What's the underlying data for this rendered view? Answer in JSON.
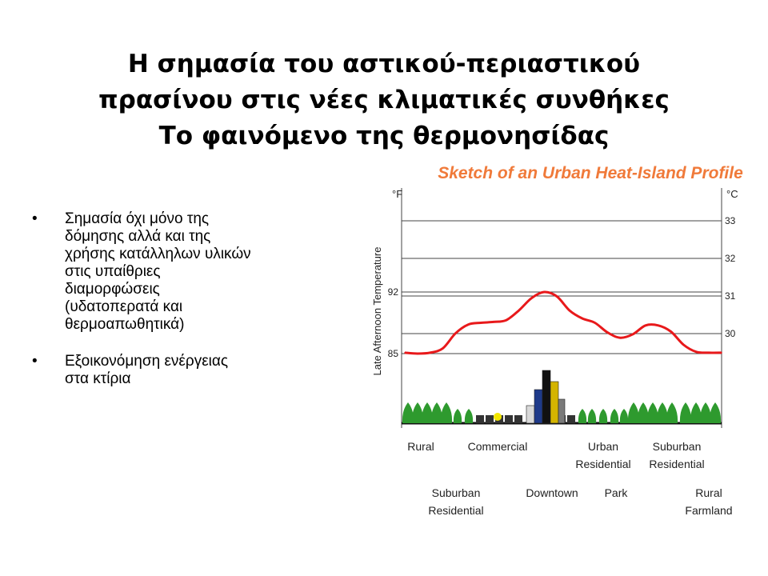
{
  "slide": {
    "title_lines": [
      "Η σημασία του αστικού-περιαστικού",
      "πρασίνου στις νέες κλιματικές συνθήκες",
      "Το φαινόμενο της θερμονησίδας"
    ],
    "bullets": [
      {
        "marker": "•",
        "lines": [
          "Σημασία όχι μόνο της",
          "δόμησης αλλά και της",
          "χρήσης κατάλληλων υλικών",
          "στις υπαίθριες",
          "διαμορφώσεις",
          "(υδατοπερατά και",
          "θερμοαπωθητικά)"
        ]
      },
      {
        "marker": "•",
        "lines": [
          "Εξοικονόμηση ενέργειας",
          "στα κτίρια"
        ]
      }
    ]
  },
  "colors": {
    "chart_title": "#f07a3a",
    "curve": "#e8191b",
    "grid": "#444444",
    "trees": "#2e9a2e",
    "chart_background": "#ffffff"
  },
  "chart_data": {
    "type": "line",
    "title": "Sketch of an Urban Heat-Island Profile",
    "ylabel": "Late Afternoon Temperature",
    "y_left_unit": "°F",
    "y_right_unit": "°C",
    "y_left_ticks": [
      "85",
      "92"
    ],
    "y_right_ticks": [
      "30",
      "31",
      "32",
      "33"
    ],
    "ylim_f": [
      85,
      92
    ],
    "grid": true,
    "series": [
      {
        "x": [
          0,
          1,
          2,
          3,
          4,
          5,
          6,
          7,
          8,
          9,
          10,
          11,
          12,
          13,
          14,
          15,
          16,
          17,
          18,
          19,
          20,
          21,
          22,
          23,
          24,
          25
        ],
        "values": [
          85.1,
          85.0,
          85.1,
          85.6,
          87.3,
          88.3,
          88.5,
          88.6,
          88.8,
          89.9,
          91.3,
          92.0,
          91.5,
          89.9,
          89.0,
          88.5,
          87.4,
          86.8,
          87.2,
          88.2,
          88.2,
          87.5,
          86.0,
          85.2,
          85.1,
          85.1
        ]
      }
    ],
    "zone_labels_top": [
      {
        "text": "Rural",
        "pos": 0.06
      },
      {
        "text": "Commercial",
        "pos": 0.3
      },
      {
        "text": "Urban",
        "pos": 0.63
      },
      {
        "text": "Residential",
        "pos": 0.63
      },
      {
        "text": "Suburban",
        "pos": 0.86
      },
      {
        "text": "Residential",
        "pos": 0.86
      }
    ],
    "zone_labels_bottom": [
      {
        "text": "Suburban",
        "pos": 0.17
      },
      {
        "text": "Residential",
        "pos": 0.17
      },
      {
        "text": "Downtown",
        "pos": 0.47
      },
      {
        "text": "Park",
        "pos": 0.67
      },
      {
        "text": "Rural",
        "pos": 0.96
      },
      {
        "text": "Farmland",
        "pos": 0.96
      }
    ]
  }
}
